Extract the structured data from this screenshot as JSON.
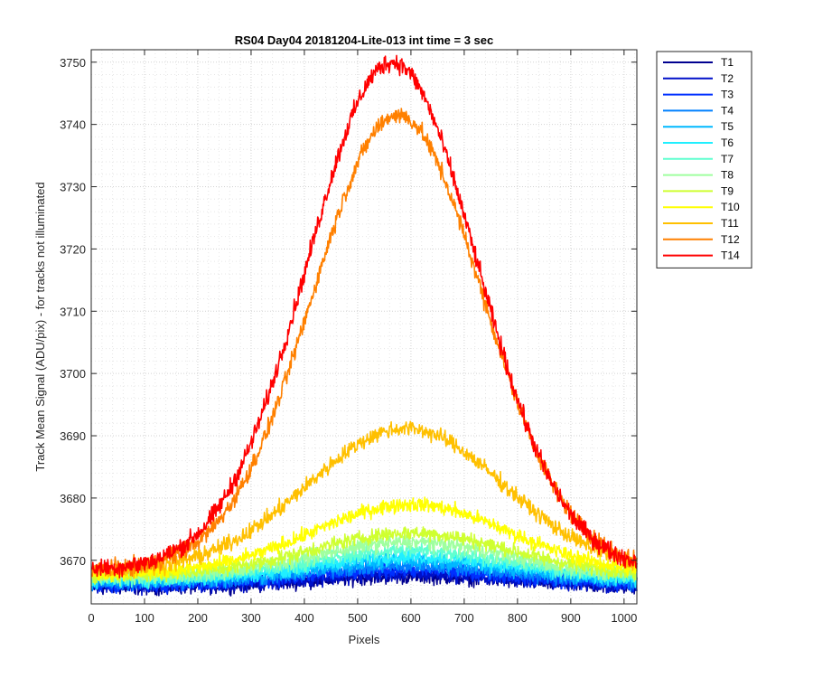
{
  "chart_data": {
    "type": "line",
    "title": "RS04 Day04 20181204-Lite-013 int time = 3 sec",
    "xlabel": "Pixels",
    "ylabel": "Track Mean Signal (ADU/pix) - for tracks not illuminated",
    "xlim": [
      0,
      1024
    ],
    "ylim": [
      3663,
      3752
    ],
    "xticks": [
      0,
      100,
      200,
      300,
      400,
      500,
      600,
      700,
      800,
      900,
      1000
    ],
    "yticks": [
      3670,
      3680,
      3690,
      3700,
      3710,
      3720,
      3730,
      3740,
      3750
    ],
    "grid": "major and minor, dotted",
    "legend_position": "outside-right",
    "series": [
      {
        "name": "T1",
        "color": "#000090",
        "baseline": 3665.6,
        "peak": 1.8,
        "peak_x": 600,
        "noise": 1.0
      },
      {
        "name": "T2",
        "color": "#0010c8",
        "baseline": 3665.8,
        "peak": 2.0,
        "peak_x": 600,
        "noise": 1.0
      },
      {
        "name": "T3",
        "color": "#0030ff",
        "baseline": 3666.0,
        "peak": 2.4,
        "peak_x": 600,
        "noise": 1.0
      },
      {
        "name": "T4",
        "color": "#0080ff",
        "baseline": 3666.3,
        "peak": 2.8,
        "peak_x": 600,
        "noise": 1.0
      },
      {
        "name": "T5",
        "color": "#00b8ff",
        "baseline": 3666.6,
        "peak": 3.3,
        "peak_x": 600,
        "noise": 1.0
      },
      {
        "name": "T6",
        "color": "#20efff",
        "baseline": 3666.8,
        "peak": 3.8,
        "peak_x": 600,
        "noise": 1.0
      },
      {
        "name": "T7",
        "color": "#60ffd0",
        "baseline": 3667.0,
        "peak": 4.6,
        "peak_x": 600,
        "noise": 1.0
      },
      {
        "name": "T8",
        "color": "#9fff9f",
        "baseline": 3667.3,
        "peak": 5.6,
        "peak_x": 600,
        "noise": 1.0
      },
      {
        "name": "T9",
        "color": "#cfff30",
        "baseline": 3667.6,
        "peak": 6.8,
        "peak_x": 600,
        "noise": 1.0
      },
      {
        "name": "T10",
        "color": "#ffff00",
        "baseline": 3667.8,
        "peak": 11.2,
        "peak_x": 600,
        "noise": 1.0
      },
      {
        "name": "T11",
        "color": "#ffc000",
        "baseline": 3668.2,
        "peak": 23.0,
        "peak_x": 590,
        "noise": 1.1
      },
      {
        "name": "T12",
        "color": "#ff8000",
        "baseline": 3668.5,
        "peak": 73.0,
        "peak_x": 575,
        "noise": 1.2
      },
      {
        "name": "T14",
        "color": "#ff0000",
        "baseline": 3668.5,
        "peak": 81.5,
        "peak_x": 565,
        "noise": 1.3
      }
    ]
  }
}
